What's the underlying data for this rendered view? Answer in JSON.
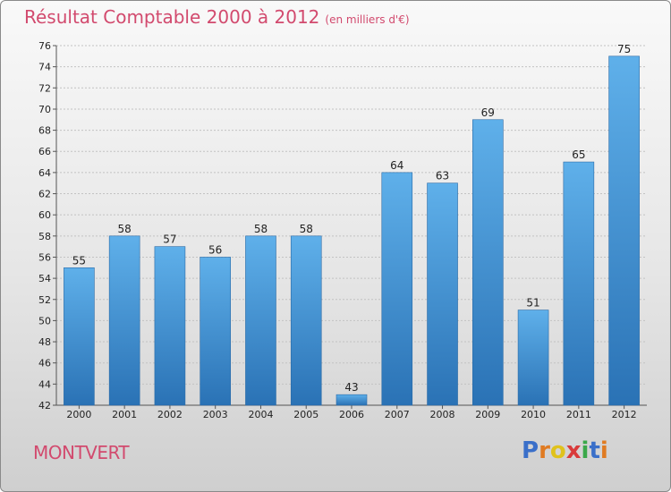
{
  "header": {
    "title": "Résultat Comptable 2000 à 2012",
    "subtitle": "(en milliers d'€)"
  },
  "footer": {
    "town": "MONTVERT"
  },
  "logo": {
    "letters": [
      "P",
      "r",
      "o",
      "x",
      "i",
      "t",
      "i"
    ],
    "colors": [
      "#3a6fc9",
      "#e07b22",
      "#e0c21c",
      "#d93a3a",
      "#3aa84a",
      "#3a6fc9",
      "#e07b22"
    ]
  },
  "chart_data": {
    "type": "bar",
    "title": "Résultat Comptable 2000 à 2012",
    "subtitle": "(en milliers d'€)",
    "categories": [
      "2000",
      "2001",
      "2002",
      "2003",
      "2004",
      "2005",
      "2006",
      "2007",
      "2008",
      "2009",
      "2010",
      "2011",
      "2012"
    ],
    "values": [
      55,
      58,
      57,
      56,
      58,
      58,
      43,
      64,
      63,
      69,
      51,
      65,
      75
    ],
    "ylim": [
      42,
      76
    ],
    "yticks": [
      42,
      44,
      46,
      48,
      50,
      52,
      54,
      56,
      58,
      60,
      62,
      64,
      66,
      68,
      70,
      72,
      74,
      76
    ],
    "grid": true,
    "bar_color": "#3f8fd4"
  }
}
